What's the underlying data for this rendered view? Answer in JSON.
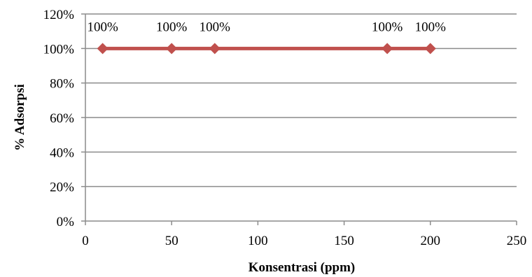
{
  "chart_data": {
    "type": "line",
    "title": "",
    "xlabel": "Konsentrasi (ppm)",
    "ylabel": "% Adsorpsi",
    "xlim": [
      0,
      250
    ],
    "ylim": [
      0,
      1.2
    ],
    "xticks": [
      0,
      50,
      100,
      150,
      200,
      250
    ],
    "yticks": [
      0,
      0.2,
      0.4,
      0.6,
      0.8,
      1.0,
      1.2
    ],
    "ytick_labels": [
      "0%",
      "20%",
      "40%",
      "60%",
      "80%",
      "100%",
      "120%"
    ],
    "xtick_labels": [
      "0",
      "50",
      "100",
      "150",
      "200",
      "250"
    ],
    "grid": true,
    "legend": "none",
    "series_color": "#c0504d",
    "series": [
      {
        "x": [
          10,
          50,
          75,
          175,
          200
        ],
        "y": [
          1.0,
          1.0,
          1.0,
          1.0,
          1.0
        ],
        "labels": [
          "100%",
          "100%",
          "100%",
          "100%",
          "100%"
        ]
      }
    ]
  }
}
